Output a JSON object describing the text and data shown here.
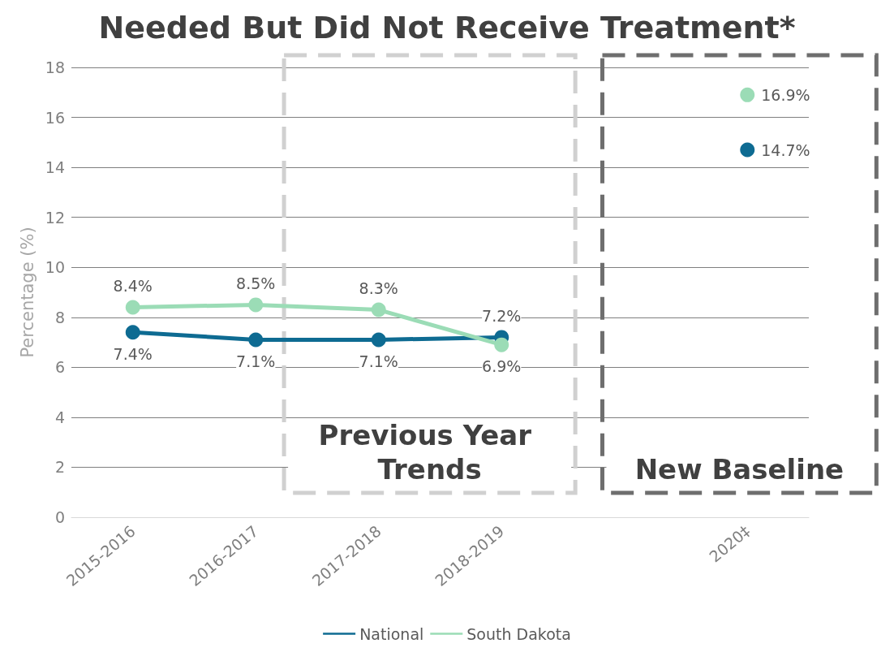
{
  "chart_data": {
    "type": "line",
    "title": "Needed But Did Not Receive Treatment*",
    "ylabel": "Percentage (%)",
    "categories": [
      "2015-2016",
      "2016-2017",
      "2017-2018",
      "2018-2019",
      null,
      "2020‡"
    ],
    "series": [
      {
        "name": "National",
        "color": "#0e6b92",
        "values": [
          7.4,
          7.1,
          7.1,
          7.2,
          null,
          14.7
        ],
        "value_labels": [
          "7.4%",
          "7.1%",
          "7.1%",
          "7.2%",
          null,
          "14.7%"
        ]
      },
      {
        "name": "South Dakota",
        "color": "#9bdcb6",
        "values": [
          8.4,
          8.5,
          8.3,
          6.9,
          null,
          16.9
        ],
        "value_labels": [
          "8.4%",
          "8.5%",
          "8.3%",
          "6.9%",
          null,
          "16.9%"
        ]
      }
    ],
    "annotations": [
      "Previous Year Trends",
      "New Baseline"
    ],
    "ylim": [
      0,
      18
    ],
    "yticks": [
      0,
      2,
      4,
      6,
      8,
      10,
      12,
      14,
      16,
      18
    ],
    "grid": "y",
    "legend": "bottom",
    "marker": "circle",
    "line_style": "solid"
  }
}
